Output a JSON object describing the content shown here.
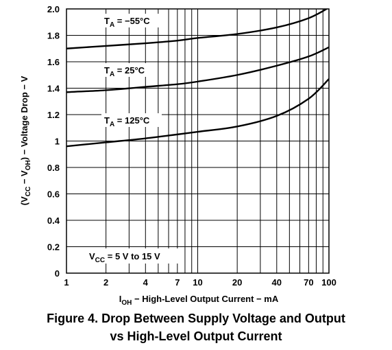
{
  "chart_data": {
    "type": "line",
    "xscale": "log",
    "xlim": [
      1,
      100
    ],
    "ylim": [
      0,
      2.0
    ],
    "grid": true,
    "x_ticks": [
      1,
      2,
      4,
      7,
      10,
      20,
      40,
      70,
      100
    ],
    "x_tick_labels": [
      "1",
      "2",
      "4",
      "7",
      "10",
      "20",
      "40",
      "70",
      "100"
    ],
    "y_ticks": [
      0,
      0.2,
      0.4,
      0.6,
      0.8,
      1,
      1.2,
      1.4,
      1.6,
      1.8,
      2.0
    ],
    "y_tick_labels": [
      "0",
      "0.2",
      "0.4",
      "0.6",
      "0.8",
      "1",
      "1.2",
      "1.4",
      "1.6",
      "1.8",
      "2.0"
    ],
    "xlabel": {
      "main": "I",
      "sub": "OH",
      "rest": " − High-Level Output Current − mA"
    },
    "ylabel": {
      "pre": "(V",
      "sub1": "CC",
      "mid": " − V",
      "sub2": "OH",
      "rest": ") − Voltage Drop − V"
    },
    "series": [
      {
        "label_main": "T",
        "label_sub": "A",
        "label_rest": " = −55°C",
        "x": [
          1,
          2,
          4,
          7,
          10,
          20,
          40,
          70,
          100
        ],
        "y": [
          1.7,
          1.72,
          1.74,
          1.76,
          1.78,
          1.81,
          1.86,
          1.93,
          2.01
        ]
      },
      {
        "label_main": "T",
        "label_sub": "A",
        "label_rest": " = 25°C",
        "x": [
          1,
          2,
          4,
          7,
          10,
          20,
          40,
          70,
          100
        ],
        "y": [
          1.37,
          1.385,
          1.41,
          1.43,
          1.45,
          1.5,
          1.57,
          1.64,
          1.71
        ]
      },
      {
        "label_main": "T",
        "label_sub": "A",
        "label_rest": " = 125°C",
        "x": [
          1,
          2,
          4,
          7,
          10,
          20,
          40,
          70,
          100
        ],
        "y": [
          0.96,
          0.99,
          1.02,
          1.05,
          1.07,
          1.11,
          1.19,
          1.32,
          1.47
        ]
      }
    ],
    "annotation": {
      "main": "V",
      "sub": "CC",
      "rest": " = 5 V to 15 V"
    }
  },
  "caption": {
    "line1": "Figure 4. Drop Between Supply Voltage and Output",
    "line2": "vs High-Level Output Current"
  }
}
